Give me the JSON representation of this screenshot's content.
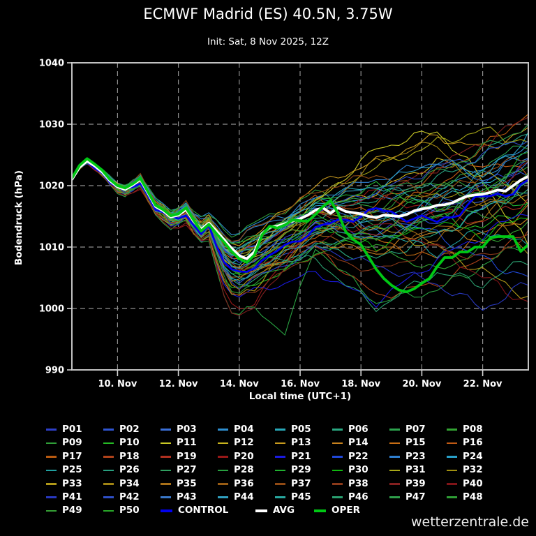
{
  "window": {
    "background": "#000000",
    "watermark": "wetterzentrale.de"
  },
  "header": {
    "title": "ECMWF Madrid (ES) 40.5N, 3.75W",
    "subtitle": "Init: Sat, 8 Nov 2025, 12Z"
  },
  "chart_data": {
    "type": "line",
    "title": "ECMWF Madrid (ES) 40.5N, 3.75W",
    "subtitle": "Init: Sat, 8 Nov 2025, 12Z",
    "xlabel": "Local time (UTC+1)",
    "ylabel": "Bodendruck (hPa)",
    "ylim": [
      990,
      1040
    ],
    "ytick_values": [
      990,
      1000,
      1010,
      1020,
      1030,
      1040
    ],
    "ytick_labels": [
      "990",
      "1000",
      "1010",
      "1020",
      "1030",
      "1040"
    ],
    "xtick_days": [
      1.5,
      3.5,
      5.5,
      7.5,
      9.5,
      11.5,
      13.5
    ],
    "xtick_labels": [
      "10. Nov",
      "12. Nov",
      "14. Nov",
      "16. Nov",
      "18. Nov",
      "20. Nov",
      "22. Nov"
    ],
    "x_axis_span_days": 15,
    "sample_step_days": 0.25,
    "grid": true,
    "grid_color": "#8f8f8f",
    "frame_color": "#c2c2c2",
    "tick_color": "#d6d6d6",
    "text_color": "#ffffff",
    "series_meta": {
      "member_width": 1.1,
      "control_width": 2.8,
      "mean_width": 3.8,
      "oper_width": 3.8
    },
    "base_common_first_4p5_days": [
      1021.0,
      1023.0,
      1024.0,
      1023.2,
      1022.2,
      1020.8,
      1019.8,
      1019.4,
      1020.1,
      1021.0,
      1018.8,
      1016.6,
      1015.9,
      1014.9,
      1015.2,
      1016.1,
      1014.2,
      1012.9,
      1013.9
    ],
    "member_anchor_days": [
      6,
      7,
      8,
      10,
      12,
      13.5,
      15
    ],
    "members": [
      {
        "name": "P01",
        "color": "#2e3fc8",
        "anchors": [
          1008,
          1011,
          1014,
          1012,
          1016,
          1020,
          1024
        ]
      },
      {
        "name": "P02",
        "color": "#2f55d2",
        "anchors": [
          1006,
          1009,
          1012,
          1016,
          1014,
          1018,
          1022
        ]
      },
      {
        "name": "P03",
        "color": "#3a6fd8",
        "anchors": [
          1010,
          1014,
          1017,
          1013,
          1018,
          1016,
          1020
        ]
      },
      {
        "name": "P04",
        "color": "#2e8fd0",
        "anchors": [
          1014,
          1015,
          1017,
          1018,
          1020,
          1022,
          1026
        ]
      },
      {
        "name": "P05",
        "color": "#28a8b8",
        "anchors": [
          1009,
          1014,
          1018,
          1020,
          1017,
          1021,
          1019
        ]
      },
      {
        "name": "P06",
        "color": "#2aa882",
        "anchors": [
          1005,
          1007,
          1010,
          1008,
          1012,
          1016,
          1021
        ]
      },
      {
        "name": "P07",
        "color": "#2ca34d",
        "anchors": [
          1011,
          1013,
          1016,
          1014,
          1019,
          1023,
          1027
        ]
      },
      {
        "name": "P08",
        "color": "#33a433",
        "anchors": [
          1007,
          1010,
          1013,
          1010,
          1006,
          1010,
          1014
        ]
      },
      {
        "name": "P09",
        "color": "#2f9e38",
        "anchors": [
          1014,
          1016,
          1019,
          1016,
          1021,
          1019,
          1023
        ]
      },
      {
        "name": "P10",
        "color": "#25bb25",
        "anchors": [
          1004,
          1006,
          1009,
          1012,
          1015,
          1013,
          1017
        ]
      },
      {
        "name": "P11",
        "color": "#c8c825",
        "anchors": [
          1010,
          1013,
          1017,
          1026,
          1029,
          1021,
          1010
        ]
      },
      {
        "name": "P12",
        "color": "#c8b41e",
        "anchors": [
          1008,
          1012,
          1016,
          1019,
          1024,
          1022,
          1018
        ]
      },
      {
        "name": "P13",
        "color": "#c89a1e",
        "anchors": [
          1012,
          1016,
          1020,
          1024,
          1028,
          1026,
          1029
        ]
      },
      {
        "name": "P14",
        "color": "#c8821e",
        "anchors": [
          1006,
          1008,
          1011,
          1009,
          1013,
          1011,
          1015
        ]
      },
      {
        "name": "P15",
        "color": "#c86e14",
        "anchors": [
          1009,
          1012,
          1014,
          1011,
          1008,
          1012,
          1016
        ]
      },
      {
        "name": "P16",
        "color": "#c05a14",
        "anchors": [
          1011,
          1014,
          1018,
          1015,
          1020,
          1024,
          1022
        ]
      },
      {
        "name": "P17",
        "color": "#b85a10",
        "anchors": [
          1007,
          1009,
          1012,
          1017,
          1022,
          1026,
          1032
        ]
      },
      {
        "name": "P18",
        "color": "#b0421a",
        "anchors": [
          1005,
          1008,
          1010,
          1002,
          1004,
          1008,
          1012
        ]
      },
      {
        "name": "P19",
        "color": "#b03020",
        "anchors": [
          1010,
          1013,
          1016,
          1012,
          1016,
          1014,
          1018
        ]
      },
      {
        "name": "P20",
        "color": "#981818",
        "anchors": [
          1001,
          1008,
          1015,
          1019,
          1015,
          1019,
          1023
        ]
      },
      {
        "name": "P21",
        "color": "#1a1ae0",
        "anchors": [
          1003,
          1004,
          1006,
          1001,
          1008,
          1012,
          1016
        ]
      },
      {
        "name": "P22",
        "color": "#2048d8",
        "anchors": [
          1009,
          1011,
          1013,
          1016,
          1012,
          1008,
          1005
        ]
      },
      {
        "name": "P23",
        "color": "#2f7fd0",
        "anchors": [
          1013,
          1015,
          1018,
          1021,
          1024,
          1021,
          1025
        ]
      },
      {
        "name": "P24",
        "color": "#28a0c8",
        "anchors": [
          1010,
          1013,
          1017,
          1014,
          1018,
          1022,
          1028
        ]
      },
      {
        "name": "P25",
        "color": "#20a0a0",
        "anchors": [
          1006,
          1008,
          1010,
          1013,
          1009,
          1013,
          1010
        ]
      },
      {
        "name": "P26",
        "color": "#28a080",
        "anchors": [
          1011,
          1013,
          1015,
          1018,
          1021,
          1025,
          1029
        ]
      },
      {
        "name": "P27",
        "color": "#30a060",
        "anchors": [
          1008,
          1010,
          1013,
          1011,
          1015,
          1019,
          1024
        ]
      },
      {
        "name": "P28",
        "color": "#28a040",
        "anchors": [
          1000,
          996,
          1010,
          1001,
          1003,
          1007,
          1011
        ]
      },
      {
        "name": "P29",
        "color": "#20b030",
        "anchors": [
          1012,
          1014,
          1017,
          1020,
          1016,
          1020,
          1016
        ]
      },
      {
        "name": "P30",
        "color": "#10b810",
        "anchors": [
          1007,
          1010,
          1014,
          1010,
          1014,
          1012,
          1015
        ]
      },
      {
        "name": "P31",
        "color": "#a8a818",
        "anchors": [
          1010,
          1014,
          1018,
          1023,
          1027,
          1029,
          1027
        ]
      },
      {
        "name": "P32",
        "color": "#a09010",
        "anchors": [
          1005,
          1008,
          1012,
          1016,
          1019,
          1017,
          1021
        ]
      },
      {
        "name": "P33",
        "color": "#b09818",
        "anchors": [
          1003,
          1010,
          1016,
          1013,
          1010,
          1006,
          1002
        ]
      },
      {
        "name": "P34",
        "color": "#a08414",
        "anchors": [
          1011,
          1013,
          1015,
          1024,
          1027,
          1018,
          1008
        ]
      },
      {
        "name": "P35",
        "color": "#a87018",
        "anchors": [
          1006,
          1009,
          1013,
          1015,
          1011,
          1015,
          1019
        ]
      },
      {
        "name": "P36",
        "color": "#985c14",
        "anchors": [
          1008,
          1010,
          1012,
          1009,
          1013,
          1017,
          1020
        ]
      },
      {
        "name": "P37",
        "color": "#904a14",
        "anchors": [
          1013,
          1016,
          1019,
          1022,
          1018,
          1022,
          1025
        ]
      },
      {
        "name": "P38",
        "color": "#8c3a1a",
        "anchors": [
          1003,
          1006,
          1009,
          1006,
          1010,
          1008,
          1012
        ]
      },
      {
        "name": "P39",
        "color": "#842020",
        "anchors": [
          1000,
          1007,
          1015,
          1018,
          1023,
          1027,
          1031
        ]
      },
      {
        "name": "P40",
        "color": "#801418",
        "anchors": [
          1007,
          1009,
          1011,
          1014,
          1010,
          1005,
          1001
        ]
      },
      {
        "name": "P41",
        "color": "#2838c0",
        "anchors": [
          1005,
          1007,
          1010,
          1007,
          1004,
          1000,
          1004
        ]
      },
      {
        "name": "P42",
        "color": "#2f50c8",
        "anchors": [
          1010,
          1013,
          1016,
          1019,
          1023,
          1025,
          1028
        ]
      },
      {
        "name": "P43",
        "color": "#3a78c8",
        "anchors": [
          1008,
          1011,
          1014,
          1011,
          1016,
          1020,
          1023
        ]
      },
      {
        "name": "P44",
        "color": "#30a0c0",
        "anchors": [
          1011,
          1014,
          1017,
          1020,
          1024,
          1022,
          1026
        ]
      },
      {
        "name": "P45",
        "color": "#28a8a0",
        "anchors": [
          1006,
          1009,
          1012,
          1015,
          1012,
          1016,
          1020
        ]
      },
      {
        "name": "P46",
        "color": "#2aa070",
        "anchors": [
          1009,
          1008,
          1008,
          1000,
          1006,
          1004,
          1008
        ]
      },
      {
        "name": "P47",
        "color": "#2f9e4a",
        "anchors": [
          1012,
          1014,
          1016,
          1019,
          1022,
          1026,
          1030
        ]
      },
      {
        "name": "P48",
        "color": "#2f9e35",
        "anchors": [
          1004,
          1007,
          1010,
          1013,
          1017,
          1015,
          1019
        ]
      },
      {
        "name": "P49",
        "color": "#35a035",
        "anchors": [
          1010,
          1012,
          1013,
          1016,
          1020,
          1018,
          1022
        ]
      },
      {
        "name": "P50",
        "color": "#28a828",
        "anchors": [
          1007,
          1011,
          1015,
          1011,
          1015,
          1019,
          1025
        ]
      }
    ],
    "control": {
      "name": "CONTROL",
      "color": "#0000ee",
      "anchors": [
        1007,
        1010,
        1013,
        1016,
        1014,
        1018,
        1020
      ]
    },
    "avg": {
      "name": "AVG",
      "color": "#ffffff",
      "values": [
        1021.0,
        1023.0,
        1024.0,
        1023.2,
        1022.2,
        1020.8,
        1019.8,
        1019.4,
        1020.1,
        1021.0,
        1018.8,
        1016.6,
        1015.9,
        1014.9,
        1015.2,
        1016.1,
        1014.2,
        1012.9,
        1013.9,
        1012.6,
        1011.2,
        1009.8,
        1008.6,
        1008.1,
        1009.2,
        1012.2,
        1013.2,
        1013.4,
        1013.8,
        1014.2,
        1014.6,
        1015.2,
        1016.0,
        1016.4,
        1015.5,
        1016.4,
        1015.8,
        1015.6,
        1015.4,
        1015.0,
        1014.8,
        1015.2,
        1015.1,
        1015.0,
        1015.3,
        1015.9,
        1016.2,
        1016.4,
        1016.8,
        1016.9,
        1017.2,
        1017.8,
        1018.3,
        1018.5,
        1018.6,
        1018.9,
        1019.3,
        1019.1,
        1020.0,
        1020.9,
        1021.5
      ]
    },
    "oper": {
      "name": "OPER",
      "color": "#00c814",
      "values": [
        1021.2,
        1023.3,
        1024.4,
        1023.5,
        1022.5,
        1021.0,
        1020.0,
        1019.6,
        1020.3,
        1021.2,
        1019.0,
        1016.8,
        1016.1,
        1015.1,
        1015.4,
        1016.4,
        1014.4,
        1012.6,
        1013.7,
        1012.2,
        1010.8,
        1009.3,
        1008.1,
        1007.5,
        1008.7,
        1012.0,
        1013.4,
        1013.1,
        1013.6,
        1014.4,
        1014.3,
        1014.2,
        1015.3,
        1016.6,
        1017.6,
        1015.5,
        1012.5,
        1011.2,
        1010.4,
        1008.4,
        1006.4,
        1004.9,
        1003.8,
        1003.0,
        1002.7,
        1003.2,
        1004.1,
        1004.9,
        1006.8,
        1008.3,
        1008.3,
        1009.2,
        1009.2,
        1010.0,
        1010.0,
        1011.5,
        1011.7,
        1011.7,
        1011.7,
        1009.3,
        1010.4
      ]
    }
  },
  "legend": {
    "columns": 8,
    "bold_entries": [
      "CONTROL",
      "AVG",
      "OPER"
    ]
  }
}
